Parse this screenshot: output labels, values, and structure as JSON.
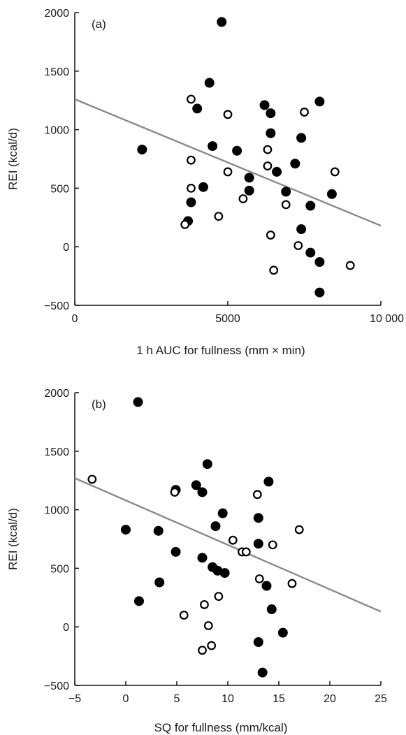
{
  "chart_data": [
    {
      "type": "scatter",
      "panel_label": "(a)",
      "title": "",
      "xlabel": "1 h AUC for fullness (mm × min)",
      "ylabel": "REI (kcal/d)",
      "xlim": [
        0,
        10000
      ],
      "ylim": [
        -500,
        2000
      ],
      "xticks": [
        0,
        5000,
        10000
      ],
      "xtick_labels": [
        "0",
        "5000",
        "10 000"
      ],
      "yticks": [
        -500,
        0,
        500,
        1000,
        1500,
        2000
      ],
      "ytick_labels": [
        "−500",
        "0",
        "500",
        "1000",
        "1500",
        "2000"
      ],
      "grid": false,
      "regression_line": {
        "x": [
          0,
          10000
        ],
        "y": [
          1260,
          180
        ]
      },
      "series": [
        {
          "marker": "filled",
          "points": [
            [
              2200,
              830
            ],
            [
              4800,
              1920
            ],
            [
              4400,
              1400
            ],
            [
              4000,
              1180
            ],
            [
              4500,
              860
            ],
            [
              4200,
              510
            ],
            [
              3800,
              380
            ],
            [
              3700,
              220
            ],
            [
              5300,
              820
            ],
            [
              5700,
              590
            ],
            [
              5700,
              480
            ],
            [
              6200,
              1210
            ],
            [
              6400,
              1140
            ],
            [
              6400,
              970
            ],
            [
              6600,
              640
            ],
            [
              6900,
              470
            ],
            [
              7200,
              710
            ],
            [
              7400,
              930
            ],
            [
              8000,
              1240
            ],
            [
              7700,
              350
            ],
            [
              7400,
              150
            ],
            [
              7700,
              -50
            ],
            [
              8000,
              -130
            ],
            [
              8000,
              -390
            ],
            [
              8400,
              450
            ]
          ]
        },
        {
          "marker": "open",
          "points": [
            [
              3800,
              1260
            ],
            [
              5000,
              1130
            ],
            [
              7500,
              1150
            ],
            [
              6300,
              830
            ],
            [
              3800,
              740
            ],
            [
              6300,
              690
            ],
            [
              5000,
              640
            ],
            [
              8500,
              640
            ],
            [
              3800,
              500
            ],
            [
              5500,
              410
            ],
            [
              4700,
              260
            ],
            [
              3600,
              190
            ],
            [
              6900,
              360
            ],
            [
              6400,
              100
            ],
            [
              7300,
              10
            ],
            [
              6500,
              -200
            ],
            [
              9000,
              -160
            ]
          ]
        }
      ]
    },
    {
      "type": "scatter",
      "panel_label": "(b)",
      "title": "",
      "xlabel": "SQ for fullness (mm/kcal)",
      "ylabel": "REI (kcal/d)",
      "xlim": [
        -5,
        25
      ],
      "ylim": [
        -500,
        2000
      ],
      "xticks": [
        -5,
        0,
        5,
        10,
        15,
        20,
        25
      ],
      "xtick_labels": [
        "−5",
        "0",
        "5",
        "10",
        "15",
        "20",
        "25"
      ],
      "yticks": [
        -500,
        0,
        500,
        1000,
        1500,
        2000
      ],
      "ytick_labels": [
        "−500",
        "0",
        "500",
        "1000",
        "1500",
        "2000"
      ],
      "grid": false,
      "regression_line": {
        "x": [
          -5,
          25
        ],
        "y": [
          1270,
          130
        ]
      },
      "series": [
        {
          "marker": "filled",
          "points": [
            [
              1.2,
              1920
            ],
            [
              0,
              830
            ],
            [
              8,
              1390
            ],
            [
              6.9,
              1210
            ],
            [
              4.9,
              1170
            ],
            [
              7.5,
              1150
            ],
            [
              14,
              1240
            ],
            [
              9.5,
              970
            ],
            [
              13,
              930
            ],
            [
              8.8,
              860
            ],
            [
              3.2,
              820
            ],
            [
              13,
              710
            ],
            [
              4.9,
              640
            ],
            [
              7.5,
              590
            ],
            [
              8.5,
              510
            ],
            [
              9.0,
              480
            ],
            [
              9.7,
              460
            ],
            [
              3.3,
              380
            ],
            [
              1.3,
              220
            ],
            [
              13.8,
              350
            ],
            [
              14.3,
              150
            ],
            [
              15.4,
              -50
            ],
            [
              13,
              -130
            ],
            [
              13.4,
              -390
            ]
          ]
        },
        {
          "marker": "open",
          "points": [
            [
              -3.3,
              1260
            ],
            [
              4.8,
              1150
            ],
            [
              12.9,
              1130
            ],
            [
              10.5,
              740
            ],
            [
              14.4,
              700
            ],
            [
              17,
              830
            ],
            [
              11.4,
              640
            ],
            [
              11.8,
              640
            ],
            [
              13.1,
              410
            ],
            [
              16.3,
              370
            ],
            [
              9.1,
              260
            ],
            [
              7.7,
              190
            ],
            [
              5.7,
              100
            ],
            [
              8.1,
              10
            ],
            [
              7.5,
              -200
            ],
            [
              8.4,
              -160
            ]
          ]
        }
      ]
    }
  ]
}
